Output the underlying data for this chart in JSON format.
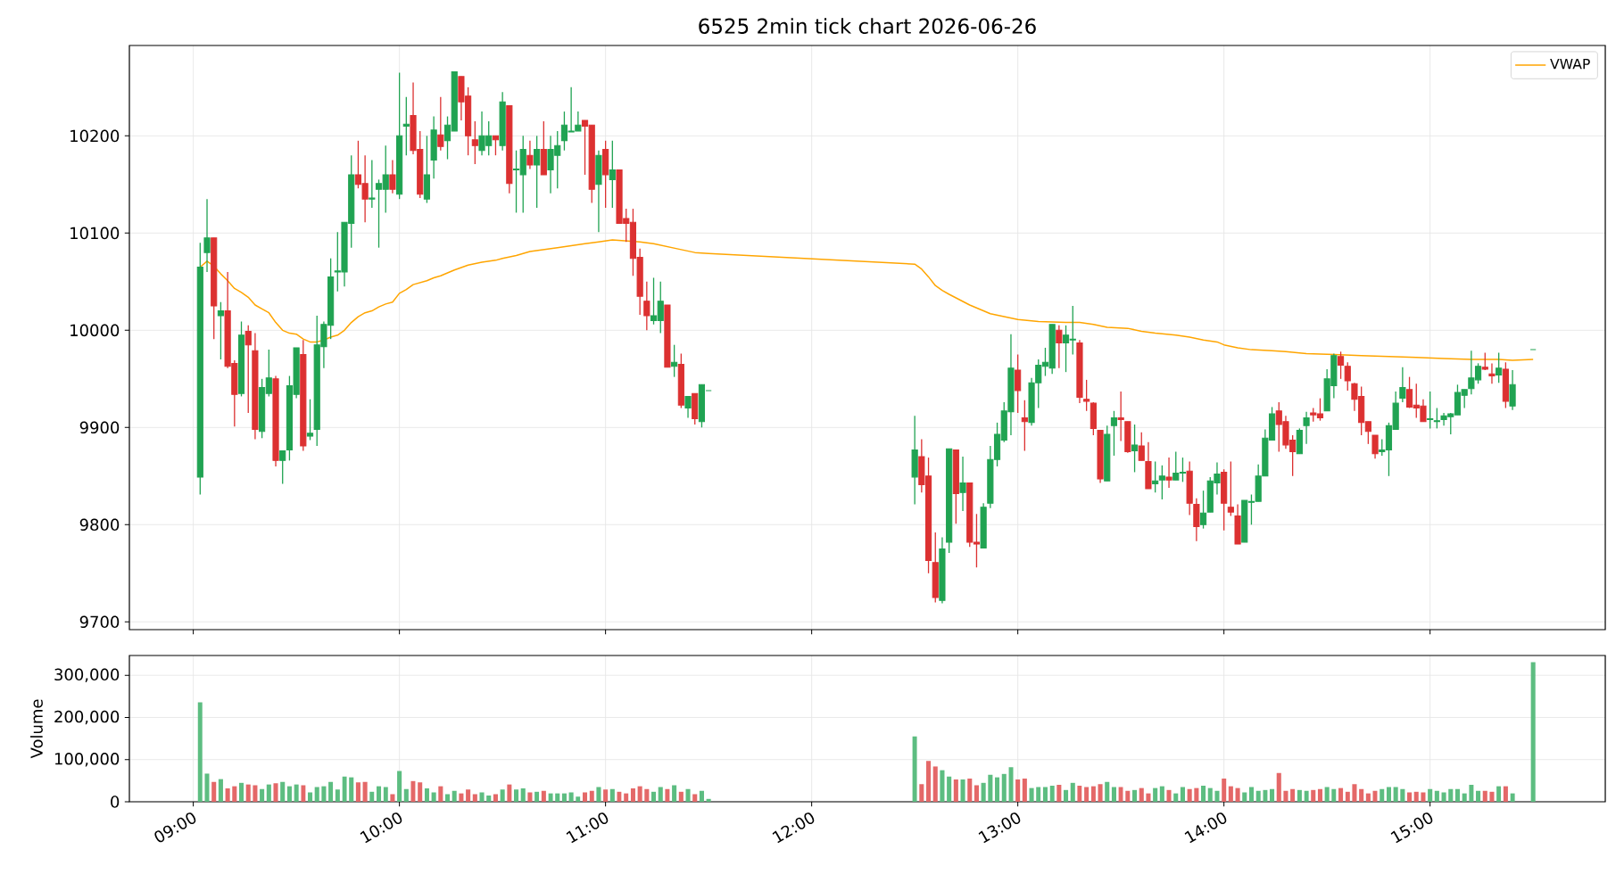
{
  "chart_data": [
    {
      "type": "candlestick",
      "title": "6525 2min tick chart 2026-06-26",
      "x": [
        9.0333,
        9.0667,
        9.1,
        9.1333,
        9.1667,
        9.2,
        9.2333,
        9.2667,
        9.3,
        9.3333,
        9.3667,
        9.4,
        9.4333,
        9.4667,
        9.5,
        9.5333,
        9.5667,
        9.6,
        9.6333,
        9.6667,
        9.7,
        9.7333,
        9.7667,
        9.8,
        9.8333,
        9.8667,
        9.9,
        9.9333,
        9.9667,
        10,
        10.0333,
        10.0667,
        10.1,
        10.1333,
        10.1667,
        10.2,
        10.2333,
        10.2667,
        10.3,
        10.3333,
        10.3667,
        10.4,
        10.4333,
        10.4667,
        10.5,
        10.5333,
        10.5667,
        10.6,
        10.6333,
        10.6667,
        10.7,
        10.7333,
        10.7667,
        10.8,
        10.8333,
        10.8667,
        10.9,
        10.9333,
        10.9667,
        11,
        11.0333,
        11.0667,
        11.1,
        11.1333,
        11.1667,
        11.2,
        11.2333,
        11.2667,
        11.3,
        11.3333,
        11.3667,
        11.4,
        11.4333,
        11.4667,
        11.5,
        12.5,
        12.5333,
        12.5667,
        12.6,
        12.6333,
        12.6667,
        12.7,
        12.7333,
        12.7667,
        12.8,
        12.8333,
        12.8667,
        12.9,
        12.9333,
        12.9667,
        13,
        13.0333,
        13.0667,
        13.1,
        13.1333,
        13.1667,
        13.2,
        13.2333,
        13.2667,
        13.3,
        13.3333,
        13.3667,
        13.4,
        13.4333,
        13.4667,
        13.5,
        13.5333,
        13.5667,
        13.6,
        13.6333,
        13.6667,
        13.7,
        13.7333,
        13.7667,
        13.8,
        13.8333,
        13.8667,
        13.9,
        13.9333,
        13.9667,
        14,
        14.0333,
        14.0667,
        14.1,
        14.1333,
        14.1667,
        14.2,
        14.2333,
        14.2667,
        14.3,
        14.3333,
        14.3667,
        14.4,
        14.4333,
        14.4667,
        14.5,
        14.5333,
        14.5667,
        14.6,
        14.6333,
        14.6667,
        14.7,
        14.7333,
        14.7667,
        14.8,
        14.8333,
        14.8667,
        14.9,
        14.9333,
        14.9667,
        15,
        15.0333,
        15.0667,
        15.1,
        15.1333,
        15.1667,
        15.2,
        15.2333,
        15.2667,
        15.3,
        15.3333,
        15.3667,
        15.4,
        15.5
      ],
      "ohlc": [
        [
          9849,
          10090,
          9831,
          10065
        ],
        [
          10080,
          10135,
          10060,
          10095
        ],
        [
          10095,
          10095,
          9991,
          10025
        ],
        [
          10015,
          10029,
          9970,
          10020
        ],
        [
          10020,
          10060,
          9961,
          9963
        ],
        [
          9966,
          9969,
          9901,
          9934
        ],
        [
          9935,
          10009,
          9932,
          9995
        ],
        [
          9999,
          10005,
          9915,
          9985
        ],
        [
          9979,
          9997,
          9888,
          9898
        ],
        [
          9896,
          9950,
          9889,
          9941
        ],
        [
          9935,
          9980,
          9932,
          9951
        ],
        [
          9950,
          9953,
          9860,
          9866
        ],
        [
          9866,
          9876,
          9842,
          9876
        ],
        [
          9877,
          9953,
          9866,
          9943
        ],
        [
          9934,
          9982,
          9930,
          9982
        ],
        [
          9975,
          9990,
          9876,
          9881
        ],
        [
          9891,
          9929,
          9887,
          9894
        ],
        [
          9898,
          10015,
          9881,
          9985
        ],
        [
          9983,
          10009,
          9961,
          10006
        ],
        [
          10005,
          10074,
          9991,
          10055
        ],
        [
          10060,
          10101,
          10040,
          10061
        ],
        [
          10060,
          10111,
          10045,
          10111
        ],
        [
          10110,
          10180,
          10085,
          10160
        ],
        [
          10160,
          10195,
          10146,
          10150
        ],
        [
          10151,
          10180,
          10111,
          10135
        ],
        [
          10135,
          10175,
          10126,
          10136
        ],
        [
          10145,
          10155,
          10085,
          10151
        ],
        [
          10145,
          10190,
          10121,
          10160
        ],
        [
          10160,
          10175,
          10141,
          10145
        ],
        [
          10140,
          10265,
          10135,
          10200
        ],
        [
          10210,
          10240,
          10180,
          10212
        ],
        [
          10221,
          10255,
          10181,
          10185
        ],
        [
          10186,
          10205,
          10136,
          10140
        ],
        [
          10135,
          10200,
          10131,
          10160
        ],
        [
          10175,
          10220,
          10156,
          10206
        ],
        [
          10201,
          10240,
          10185,
          10189
        ],
        [
          10195,
          10220,
          10176,
          10211
        ],
        [
          10205,
          10266,
          10205,
          10266
        ],
        [
          10261,
          10261,
          10216,
          10235
        ],
        [
          10241,
          10250,
          10180,
          10200
        ],
        [
          10196,
          10215,
          10171,
          10190
        ],
        [
          10185,
          10225,
          10180,
          10200
        ],
        [
          10190,
          10215,
          10180,
          10200
        ],
        [
          10200,
          10200,
          10180,
          10196
        ],
        [
          10190,
          10245,
          10185,
          10235
        ],
        [
          10231,
          10231,
          10141,
          10151
        ],
        [
          10165,
          10185,
          10121,
          10166
        ],
        [
          10160,
          10200,
          10121,
          10186
        ],
        [
          10180,
          10195,
          10166,
          10170
        ],
        [
          10170,
          10200,
          10126,
          10186
        ],
        [
          10186,
          10215,
          10160,
          10160
        ],
        [
          10165,
          10200,
          10141,
          10186
        ],
        [
          10180,
          10205,
          10146,
          10190
        ],
        [
          10195,
          10225,
          10185,
          10211
        ],
        [
          10204,
          10250,
          10204,
          10205
        ],
        [
          10205,
          10225,
          10205,
          10211
        ],
        [
          10216,
          10216,
          10160,
          10210
        ],
        [
          10211,
          10211,
          10131,
          10145
        ],
        [
          10150,
          10185,
          10101,
          10180
        ],
        [
          10186,
          10195,
          10126,
          10160
        ],
        [
          10155,
          10195,
          10126,
          10165
        ],
        [
          10165,
          10165,
          10110,
          10110
        ],
        [
          10115,
          10125,
          10091,
          10110
        ],
        [
          10111,
          10125,
          10056,
          10074
        ],
        [
          10075,
          10084,
          10016,
          10035
        ],
        [
          10030,
          10050,
          10000,
          10015
        ],
        [
          10010,
          10054,
          10006,
          10015
        ],
        [
          10010,
          10050,
          9997,
          10030
        ],
        [
          10026,
          10026,
          9962,
          9962
        ],
        [
          9963,
          9985,
          9952,
          9967
        ],
        [
          9965,
          9976,
          9920,
          9923
        ],
        [
          9920,
          9932,
          9910,
          9932
        ],
        [
          9935,
          9935,
          9903,
          9909
        ],
        [
          9906,
          9944,
          9900,
          9944
        ],
        [
          9938,
          9938,
          9938,
          9938
        ],
        [
          9849,
          9912,
          9821,
          9877
        ],
        [
          9870,
          9888,
          9833,
          9841
        ],
        [
          9850,
          9869,
          9750,
          9763
        ],
        [
          9761,
          9792,
          9720,
          9725
        ],
        [
          9722,
          9787,
          9719,
          9775
        ],
        [
          9782,
          9878,
          9771,
          9878
        ],
        [
          9877,
          9877,
          9801,
          9832
        ],
        [
          9833,
          9870,
          9814,
          9843
        ],
        [
          9843,
          9843,
          9777,
          9782
        ],
        [
          9782,
          9811,
          9756,
          9780
        ],
        [
          9776,
          9822,
          9776,
          9818
        ],
        [
          9822,
          9881,
          9817,
          9867
        ],
        [
          9867,
          9905,
          9860,
          9893
        ],
        [
          9887,
          9926,
          9885,
          9917
        ],
        [
          9916,
          9996,
          9892,
          9961
        ],
        [
          9959,
          9975,
          9915,
          9938
        ],
        [
          9910,
          9928,
          9876,
          9906
        ],
        [
          9905,
          9951,
          9902,
          9946
        ],
        [
          9946,
          9970,
          9920,
          9964
        ],
        [
          9963,
          9982,
          9953,
          9967
        ],
        [
          9961,
          10006,
          9955,
          10006
        ],
        [
          10000,
          10005,
          9961,
          9987
        ],
        [
          9987,
          10005,
          9957,
          9995
        ],
        [
          9990,
          10025,
          9975,
          9991
        ],
        [
          9987,
          9990,
          9925,
          9931
        ],
        [
          9929,
          9949,
          9917,
          9927
        ],
        [
          9925,
          9926,
          9892,
          9899
        ],
        [
          9897,
          9897,
          9843,
          9847
        ],
        [
          9845,
          9902,
          9845,
          9893
        ],
        [
          9902,
          9917,
          9871,
          9910
        ],
        [
          9910,
          9937,
          9886,
          9908
        ],
        [
          9906,
          9906,
          9874,
          9875
        ],
        [
          9876,
          9903,
          9854,
          9882
        ],
        [
          9881,
          9895,
          9866,
          9866
        ],
        [
          9865,
          9885,
          9837,
          9837
        ],
        [
          9842,
          9865,
          9833,
          9845
        ],
        [
          9846,
          9861,
          9826,
          9850
        ],
        [
          9849,
          9869,
          9838,
          9846
        ],
        [
          9846,
          9875,
          9846,
          9853
        ],
        [
          9853,
          9869,
          9844,
          9854
        ],
        [
          9855,
          9865,
          9810,
          9822
        ],
        [
          9821,
          9827,
          9783,
          9798
        ],
        [
          9800,
          9835,
          9796,
          9812
        ],
        [
          9813,
          9849,
          9813,
          9845
        ],
        [
          9843,
          9864,
          9831,
          9852
        ],
        [
          9854,
          9857,
          9794,
          9822
        ],
        [
          9818,
          9865,
          9809,
          9813
        ],
        [
          9809,
          9821,
          9780,
          9780
        ],
        [
          9782,
          9825,
          9782,
          9825
        ],
        [
          9823,
          9831,
          9800,
          9824
        ],
        [
          9824,
          9862,
          9824,
          9850
        ],
        [
          9850,
          9898,
          9850,
          9889
        ],
        [
          9887,
          9921,
          9887,
          9914
        ],
        [
          9917,
          9926,
          9875,
          9903
        ],
        [
          9906,
          9912,
          9878,
          9882
        ],
        [
          9887,
          9892,
          9850,
          9875
        ],
        [
          9873,
          9899,
          9873,
          9897
        ],
        [
          9902,
          9916,
          9883,
          9910
        ],
        [
          9915,
          9920,
          9906,
          9913
        ],
        [
          9914,
          9930,
          9907,
          9910
        ],
        [
          9917,
          9960,
          9917,
          9950
        ],
        [
          9943,
          9976,
          9930,
          9974
        ],
        [
          9973,
          9978,
          9950,
          9964
        ],
        [
          9963,
          9967,
          9938,
          9948
        ],
        [
          9945,
          9946,
          9917,
          9929
        ],
        [
          9932,
          9942,
          9892,
          9905
        ],
        [
          9906,
          9906,
          9883,
          9896
        ],
        [
          9892,
          9892,
          9868,
          9873
        ],
        [
          9875,
          9888,
          9871,
          9877
        ],
        [
          9877,
          9905,
          9850,
          9902
        ],
        [
          9898,
          9937,
          9898,
          9925
        ],
        [
          9930,
          9962,
          9926,
          9941
        ],
        [
          9939,
          9952,
          9920,
          9921
        ],
        [
          9923,
          9945,
          9910,
          9920
        ],
        [
          9922,
          9929,
          9906,
          9906
        ],
        [
          9908,
          9937,
          9899,
          9909
        ],
        [
          9906,
          9920,
          9899,
          9907
        ],
        [
          9908,
          9915,
          9902,
          9912
        ],
        [
          9911,
          9915,
          9893,
          9914
        ],
        [
          9913,
          9944,
          9913,
          9936
        ],
        [
          9933,
          9939,
          9920,
          9939
        ],
        [
          9940,
          9979,
          9934,
          9951
        ],
        [
          9949,
          9966,
          9945,
          9963
        ],
        [
          9962,
          9977,
          9959,
          9960
        ],
        [
          9955,
          9966,
          9945,
          9953
        ],
        [
          9954,
          9977,
          9946,
          9961
        ],
        [
          9960,
          9967,
          9920,
          9927
        ],
        [
          9922,
          9959,
          9918,
          9944
        ],
        [
          9980,
          9980,
          9980,
          9980
        ]
      ],
      "colors": [
        "#20a352",
        "#20a352",
        "#dc3131",
        "#20a352",
        "#dc3131",
        "#dc3131",
        "#20a352",
        "#dc3131",
        "#dc3131",
        "#20a352",
        "#20a352",
        "#dc3131",
        "#20a352",
        "#20a352",
        "#20a352",
        "#dc3131",
        "#20a352",
        "#20a352",
        "#20a352",
        "#20a352",
        "#20a352",
        "#20a352",
        "#20a352",
        "#dc3131",
        "#dc3131",
        "#20a352",
        "#20a352",
        "#20a352",
        "#dc3131",
        "#20a352",
        "#20a352",
        "#dc3131",
        "#dc3131",
        "#20a352",
        "#20a352",
        "#dc3131",
        "#20a352",
        "#20a352",
        "#dc3131",
        "#dc3131",
        "#dc3131",
        "#20a352",
        "#20a352",
        "#dc3131",
        "#20a352",
        "#dc3131",
        "#20a352",
        "#20a352",
        "#dc3131",
        "#20a352",
        "#dc3131",
        "#20a352",
        "#20a352",
        "#20a352",
        "#20a352",
        "#20a352",
        "#dc3131",
        "#dc3131",
        "#20a352",
        "#dc3131",
        "#20a352",
        "#dc3131",
        "#dc3131",
        "#dc3131",
        "#dc3131",
        "#dc3131",
        "#20a352",
        "#20a352",
        "#dc3131",
        "#20a352",
        "#dc3131",
        "#20a352",
        "#dc3131",
        "#20a352",
        "#20a352",
        "#20a352",
        "#dc3131",
        "#dc3131",
        "#dc3131",
        "#20a352",
        "#20a352",
        "#dc3131",
        "#20a352",
        "#dc3131",
        "#dc3131",
        "#20a352",
        "#20a352",
        "#20a352",
        "#20a352",
        "#20a352",
        "#dc3131",
        "#dc3131",
        "#20a352",
        "#20a352",
        "#20a352",
        "#20a352",
        "#dc3131",
        "#20a352",
        "#20a352",
        "#dc3131",
        "#dc3131",
        "#dc3131",
        "#dc3131",
        "#20a352",
        "#20a352",
        "#dc3131",
        "#dc3131",
        "#20a352",
        "#dc3131",
        "#dc3131",
        "#20a352",
        "#20a352",
        "#dc3131",
        "#20a352",
        "#20a352",
        "#dc3131",
        "#dc3131",
        "#20a352",
        "#20a352",
        "#20a352",
        "#dc3131",
        "#dc3131",
        "#dc3131",
        "#20a352",
        "#20a352",
        "#20a352",
        "#20a352",
        "#20a352",
        "#dc3131",
        "#dc3131",
        "#dc3131",
        "#20a352",
        "#20a352",
        "#dc3131",
        "#dc3131",
        "#20a352",
        "#20a352",
        "#dc3131",
        "#dc3131",
        "#dc3131",
        "#dc3131",
        "#dc3131",
        "#dc3131",
        "#20a352",
        "#20a352",
        "#20a352",
        "#20a352",
        "#dc3131",
        "#dc3131",
        "#dc3131",
        "#20a352",
        "#20a352",
        "#20a352",
        "#20a352",
        "#20a352",
        "#20a352",
        "#20a352",
        "#20a352",
        "#dc3131",
        "#dc3131",
        "#20a352",
        "#dc3131",
        "#20a352",
        "#20a352"
      ],
      "series": [
        {
          "name": "VWAP",
          "type": "line",
          "color": "#ffa500",
          "x": [
            9.0333,
            9.0667,
            9.1,
            9.1333,
            9.1667,
            9.2,
            9.2333,
            9.2667,
            9.3,
            9.3333,
            9.3667,
            9.4,
            9.4333,
            9.4667,
            9.5,
            9.5333,
            9.5667,
            9.6,
            9.6333,
            9.6667,
            9.7,
            9.7333,
            9.7667,
            9.8,
            9.8333,
            9.8667,
            9.9,
            9.9333,
            9.9667,
            10,
            10.0333,
            10.0667,
            10.1,
            10.1333,
            10.1667,
            10.2,
            10.2333,
            10.2667,
            10.3333,
            10.4,
            10.4667,
            10.5,
            10.5667,
            10.6333,
            10.7,
            10.7667,
            10.8333,
            10.9,
            10.9667,
            11,
            11.0333,
            11.1,
            11.1667,
            11.2333,
            11.3,
            11.3667,
            11.4333,
            11.5,
            12.5,
            12.5333,
            12.5667,
            12.6,
            12.6333,
            12.6667,
            12.7667,
            12.8667,
            12.9333,
            13,
            13.1,
            13.2333,
            13.3,
            13.3667,
            13.4333,
            13.5333,
            13.6,
            13.6667,
            13.7667,
            13.8333,
            13.9,
            13.9667,
            14,
            14.0667,
            14.1333,
            14.2333,
            14.3,
            14.4,
            14.5333,
            14.6667,
            14.8,
            14.9333,
            15.0667,
            15.2,
            15.3333,
            15.4,
            15.5
          ],
          "values": [
            10065,
            10071,
            10066,
            10058,
            10051,
            10043,
            10039,
            10034,
            10026,
            10022,
            10018,
            10008,
            10000,
            9997,
            9996,
            9991,
            9988,
            9988,
            9990,
            9993,
            9995,
            10000,
            10008,
            10014,
            10018,
            10020,
            10024,
            10027,
            10029,
            10038,
            10042,
            10047,
            10049,
            10051,
            10054,
            10056,
            10059,
            10062,
            10067,
            10070,
            10072,
            10074,
            10077,
            10081,
            10083,
            10085,
            10087,
            10089,
            10091,
            10092,
            10093,
            10092,
            10091,
            10089,
            10086,
            10083,
            10080,
            10079,
            10068,
            10063,
            10055,
            10046,
            10041,
            10037,
            10026,
            10017,
            10014,
            10011,
            10009,
            10008,
            10008,
            10006,
            10003,
            10002,
            9999,
            9997,
            9995,
            9993,
            9990,
            9988,
            9985,
            9982,
            9980,
            9979,
            9978,
            9976,
            9975,
            9974,
            9973,
            9972,
            9971,
            9970,
            9970,
            9969,
            9970
          ]
        }
      ],
      "xlim": [
        8.69,
        15.85
      ],
      "ylim": [
        9692,
        10293
      ],
      "xticks": [
        {
          "value": 9,
          "label": null
        },
        {
          "value": 10,
          "label": null
        },
        {
          "value": 11,
          "label": null
        },
        {
          "value": 12,
          "label": null
        },
        {
          "value": 13,
          "label": null
        },
        {
          "value": 14,
          "label": null
        },
        {
          "value": 15,
          "label": null
        }
      ],
      "yticks": [
        9700,
        9800,
        9900,
        10000,
        10100,
        10200
      ],
      "tick_labels": "y",
      "grid": true,
      "legend": "top right"
    },
    {
      "type": "bar",
      "ylabel": "Volume",
      "x": [
        9.0333,
        9.0667,
        9.1,
        9.1333,
        9.1667,
        9.2,
        9.2333,
        9.2667,
        9.3,
        9.3333,
        9.3667,
        9.4,
        9.4333,
        9.4667,
        9.5,
        9.5333,
        9.5667,
        9.6,
        9.6333,
        9.6667,
        9.7,
        9.7333,
        9.7667,
        9.8,
        9.8333,
        9.8667,
        9.9,
        9.9333,
        9.9667,
        10,
        10.0333,
        10.0667,
        10.1,
        10.1333,
        10.1667,
        10.2,
        10.2333,
        10.2667,
        10.3,
        10.3333,
        10.3667,
        10.4,
        10.4333,
        10.4667,
        10.5,
        10.5333,
        10.5667,
        10.6,
        10.6333,
        10.6667,
        10.7,
        10.7333,
        10.7667,
        10.8,
        10.8333,
        10.8667,
        10.9,
        10.9333,
        10.9667,
        11,
        11.0333,
        11.0667,
        11.1,
        11.1333,
        11.1667,
        11.2,
        11.2333,
        11.2667,
        11.3,
        11.3333,
        11.3667,
        11.4,
        11.4333,
        11.4667,
        11.5,
        12.5,
        12.5333,
        12.5667,
        12.6,
        12.6333,
        12.6667,
        12.7,
        12.7333,
        12.7667,
        12.8,
        12.8333,
        12.8667,
        12.9,
        12.9333,
        12.9667,
        13,
        13.0333,
        13.0667,
        13.1,
        13.1333,
        13.1667,
        13.2,
        13.2333,
        13.2667,
        13.3,
        13.3333,
        13.3667,
        13.4,
        13.4333,
        13.4667,
        13.5,
        13.5333,
        13.5667,
        13.6,
        13.6333,
        13.6667,
        13.7,
        13.7333,
        13.7667,
        13.8,
        13.8333,
        13.8667,
        13.9,
        13.9333,
        13.9667,
        14,
        14.0333,
        14.0667,
        14.1,
        14.1333,
        14.1667,
        14.2,
        14.2333,
        14.2667,
        14.3,
        14.3333,
        14.3667,
        14.4,
        14.4333,
        14.4667,
        14.5,
        14.5333,
        14.5667,
        14.6,
        14.6333,
        14.6667,
        14.7,
        14.7333,
        14.7667,
        14.8,
        14.8333,
        14.8667,
        14.9,
        14.9333,
        14.9667,
        15,
        15.0333,
        15.0667,
        15.1,
        15.1333,
        15.1667,
        15.2,
        15.2333,
        15.2667,
        15.3,
        15.3333,
        15.3667,
        15.4,
        15.5
      ],
      "values": [
        236000,
        67000,
        47000,
        54000,
        32000,
        37000,
        45000,
        41000,
        39000,
        30000,
        41000,
        44000,
        47000,
        37000,
        41000,
        39000,
        22000,
        35000,
        37000,
        47000,
        29000,
        60000,
        58000,
        46000,
        47000,
        24000,
        37000,
        35000,
        18000,
        73000,
        30000,
        49000,
        46000,
        32000,
        22000,
        37000,
        18000,
        26000,
        20000,
        29000,
        18000,
        22000,
        15000,
        18000,
        29000,
        41000,
        29000,
        32000,
        22000,
        24000,
        26000,
        20000,
        20000,
        20000,
        22000,
        12000,
        22000,
        26000,
        35000,
        29000,
        30000,
        24000,
        20000,
        32000,
        37000,
        30000,
        24000,
        35000,
        30000,
        39000,
        24000,
        30000,
        18000,
        26000,
        7000,
        155000,
        42000,
        97000,
        84000,
        75000,
        60000,
        53000,
        53000,
        55000,
        39000,
        45000,
        64000,
        58000,
        66000,
        82000,
        53000,
        55000,
        33000,
        35000,
        35000,
        38000,
        40000,
        28000,
        45000,
        38000,
        35000,
        37000,
        42000,
        47000,
        35000,
        35000,
        26000,
        28000,
        33000,
        20000,
        33000,
        37000,
        28000,
        20000,
        35000,
        30000,
        33000,
        38000,
        33000,
        26000,
        55000,
        37000,
        33000,
        22000,
        35000,
        26000,
        28000,
        30000,
        68000,
        26000,
        30000,
        28000,
        26000,
        28000,
        30000,
        35000,
        30000,
        33000,
        24000,
        42000,
        30000,
        20000,
        26000,
        30000,
        35000,
        35000,
        30000,
        22000,
        24000,
        22000,
        30000,
        26000,
        22000,
        30000,
        30000,
        20000,
        40000,
        26000,
        26000,
        24000,
        37000,
        37000,
        20000,
        331000
      ],
      "colors": [
        "#5dbd81",
        "#5dbd81",
        "#e46868",
        "#5dbd81",
        "#e46868",
        "#e46868",
        "#5dbd81",
        "#e46868",
        "#e46868",
        "#5dbd81",
        "#5dbd81",
        "#e46868",
        "#5dbd81",
        "#5dbd81",
        "#5dbd81",
        "#e46868",
        "#5dbd81",
        "#5dbd81",
        "#5dbd81",
        "#5dbd81",
        "#5dbd81",
        "#5dbd81",
        "#5dbd81",
        "#e46868",
        "#e46868",
        "#5dbd81",
        "#5dbd81",
        "#5dbd81",
        "#e46868",
        "#5dbd81",
        "#5dbd81",
        "#e46868",
        "#e46868",
        "#5dbd81",
        "#5dbd81",
        "#e46868",
        "#5dbd81",
        "#5dbd81",
        "#e46868",
        "#e46868",
        "#e46868",
        "#5dbd81",
        "#5dbd81",
        "#e46868",
        "#5dbd81",
        "#e46868",
        "#5dbd81",
        "#5dbd81",
        "#e46868",
        "#5dbd81",
        "#e46868",
        "#5dbd81",
        "#5dbd81",
        "#5dbd81",
        "#5dbd81",
        "#5dbd81",
        "#e46868",
        "#e46868",
        "#5dbd81",
        "#e46868",
        "#5dbd81",
        "#e46868",
        "#e46868",
        "#e46868",
        "#e46868",
        "#e46868",
        "#5dbd81",
        "#5dbd81",
        "#e46868",
        "#5dbd81",
        "#e46868",
        "#5dbd81",
        "#e46868",
        "#5dbd81",
        "#5dbd81",
        "#5dbd81",
        "#e46868",
        "#e46868",
        "#e46868",
        "#5dbd81",
        "#5dbd81",
        "#e46868",
        "#5dbd81",
        "#e46868",
        "#e46868",
        "#5dbd81",
        "#5dbd81",
        "#5dbd81",
        "#5dbd81",
        "#5dbd81",
        "#e46868",
        "#e46868",
        "#5dbd81",
        "#5dbd81",
        "#5dbd81",
        "#5dbd81",
        "#e46868",
        "#5dbd81",
        "#5dbd81",
        "#e46868",
        "#e46868",
        "#e46868",
        "#e46868",
        "#5dbd81",
        "#5dbd81",
        "#e46868",
        "#e46868",
        "#5dbd81",
        "#e46868",
        "#e46868",
        "#5dbd81",
        "#5dbd81",
        "#e46868",
        "#5dbd81",
        "#5dbd81",
        "#e46868",
        "#e46868",
        "#5dbd81",
        "#5dbd81",
        "#5dbd81",
        "#e46868",
        "#e46868",
        "#e46868",
        "#5dbd81",
        "#5dbd81",
        "#5dbd81",
        "#5dbd81",
        "#5dbd81",
        "#e46868",
        "#e46868",
        "#e46868",
        "#5dbd81",
        "#5dbd81",
        "#e46868",
        "#e46868",
        "#5dbd81",
        "#5dbd81",
        "#e46868",
        "#e46868",
        "#e46868",
        "#e46868",
        "#e46868",
        "#e46868",
        "#5dbd81",
        "#5dbd81",
        "#5dbd81",
        "#5dbd81",
        "#e46868",
        "#e46868",
        "#e46868",
        "#5dbd81",
        "#5dbd81",
        "#5dbd81",
        "#5dbd81",
        "#5dbd81",
        "#5dbd81",
        "#5dbd81",
        "#5dbd81",
        "#e46868",
        "#e46868",
        "#5dbd81",
        "#e46868",
        "#5dbd81",
        "#5dbd81"
      ],
      "xlim": [
        8.69,
        15.85
      ],
      "ylim": [
        0,
        347000
      ],
      "xticks": [
        {
          "value": 9,
          "label": "09:00"
        },
        {
          "value": 10,
          "label": "10:00"
        },
        {
          "value": 11,
          "label": "11:00"
        },
        {
          "value": 12,
          "label": "12:00"
        },
        {
          "value": 13,
          "label": "13:00"
        },
        {
          "value": 14,
          "label": "14:00"
        },
        {
          "value": 15,
          "label": "15:00"
        }
      ],
      "yticks": [
        0,
        {
          "value": 100000,
          "label": "100,000"
        },
        {
          "value": 200000,
          "label": "200,000"
        },
        {
          "value": 300000,
          "label": "300,000"
        }
      ],
      "grid": true
    }
  ]
}
